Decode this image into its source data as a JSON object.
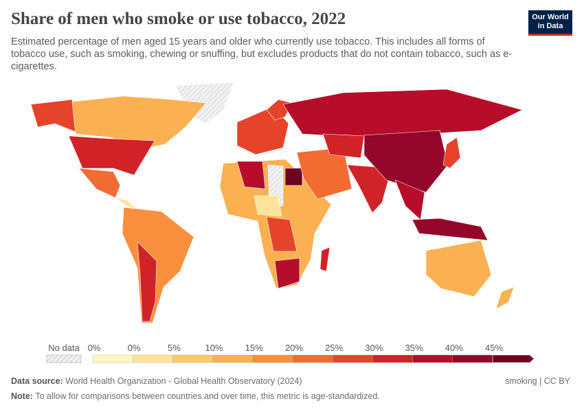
{
  "header": {
    "title": "Share of men who smoke or use tobacco, 2022",
    "subtitle": "Estimated percentage of men aged 15 years and older who currently use tobacco. This includes all forms of tobacco use, such as smoking, chewing or snuffing, but excludes products that do not contain tobacco, such as e-cigarettes.",
    "logo": [
      "Our World",
      "in Data"
    ]
  },
  "legend": {
    "no_data": "No data",
    "labels": [
      "0%",
      "0%",
      "5%",
      "10%",
      "15%",
      "20%",
      "25%",
      "30%",
      "35%",
      "40%",
      "45%"
    ],
    "colors": [
      "#fef6c0",
      "#fde49a",
      "#fcc96b",
      "#fbb051",
      "#f98f3d",
      "#f26b33",
      "#e6432b",
      "#d12227",
      "#b70d2a",
      "#95072a",
      "#6e0220"
    ]
  },
  "footer": {
    "source_label": "Data source:",
    "source_text": "World Health Organization - Global Health Observatory (2024)",
    "license": "smoking | CC BY",
    "note_label": "Note:",
    "note_text": "To allow for comparisons between countries and over time, this metric is age-standardized."
  }
}
